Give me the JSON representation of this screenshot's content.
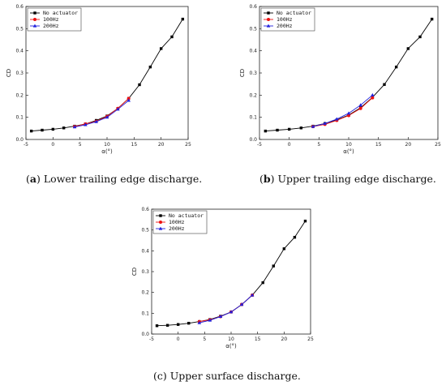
{
  "figure": {
    "captions": [
      {
        "letter": "a",
        "text": " Lower trailing edge discharge."
      },
      {
        "letter": "b",
        "text": " Upper trailing edge discharge."
      },
      {
        "letter": "c",
        "text": " Upper surface discharge."
      }
    ]
  },
  "colors": {
    "no_actuator": "#000000",
    "hz100": "#ee1111",
    "hz200": "#2222dd"
  },
  "chart_data": [
    {
      "type": "line",
      "panel": "a",
      "xlabel": "α(°)",
      "ylabel": "CD",
      "xlim": [
        -5,
        25
      ],
      "ylim": [
        0,
        0.6
      ],
      "xticks": [
        -5,
        0,
        5,
        10,
        15,
        20,
        25
      ],
      "yticks": [
        0.0,
        0.1,
        0.2,
        0.3,
        0.4,
        0.5,
        0.6
      ],
      "legend_position": "top-left",
      "series": [
        {
          "name": "No actuator",
          "marker": "square",
          "x": [
            -4,
            -2,
            0,
            2,
            4,
            6,
            8,
            10,
            12,
            14,
            16,
            18,
            20,
            22,
            24
          ],
          "y": [
            0.038,
            0.042,
            0.046,
            0.052,
            0.06,
            0.07,
            0.086,
            0.106,
            0.14,
            0.185,
            0.247,
            0.327,
            0.41,
            0.463,
            0.543
          ]
        },
        {
          "name": "100Hz",
          "marker": "circle",
          "x": [
            4,
            6,
            8,
            10,
            12,
            14
          ],
          "y": [
            0.058,
            0.07,
            0.082,
            0.104,
            0.14,
            0.185
          ]
        },
        {
          "name": "200Hz",
          "marker": "triangle",
          "x": [
            4,
            6,
            8,
            10,
            12,
            14
          ],
          "y": [
            0.056,
            0.066,
            0.08,
            0.1,
            0.136,
            0.176
          ]
        }
      ]
    },
    {
      "type": "line",
      "panel": "b",
      "xlabel": "α(°)",
      "ylabel": "CD",
      "xlim": [
        -5,
        25
      ],
      "ylim": [
        0,
        0.6
      ],
      "xticks": [
        -5,
        0,
        5,
        10,
        15,
        20,
        25
      ],
      "yticks": [
        0.0,
        0.1,
        0.2,
        0.3,
        0.4,
        0.5,
        0.6
      ],
      "legend_position": "top-left",
      "series": [
        {
          "name": "No actuator",
          "marker": "square",
          "x": [
            -4,
            -2,
            0,
            2,
            4,
            6,
            8,
            10,
            12,
            14,
            16,
            18,
            20,
            22,
            24
          ],
          "y": [
            0.038,
            0.042,
            0.046,
            0.052,
            0.06,
            0.072,
            0.088,
            0.11,
            0.143,
            0.19,
            0.248,
            0.327,
            0.41,
            0.463,
            0.543
          ]
        },
        {
          "name": "100Hz",
          "marker": "circle",
          "x": [
            4,
            6,
            8,
            10,
            12,
            14
          ],
          "y": [
            0.058,
            0.068,
            0.086,
            0.108,
            0.14,
            0.188
          ]
        },
        {
          "name": "200Hz",
          "marker": "triangle",
          "x": [
            4,
            6,
            8,
            10,
            12,
            14
          ],
          "y": [
            0.058,
            0.072,
            0.092,
            0.118,
            0.155,
            0.2
          ]
        }
      ]
    },
    {
      "type": "line",
      "panel": "c",
      "xlabel": "α(°)",
      "ylabel": "CD",
      "xlim": [
        -5,
        25
      ],
      "ylim": [
        0,
        0.6
      ],
      "xticks": [
        -5,
        0,
        5,
        10,
        15,
        20,
        25
      ],
      "yticks": [
        0.0,
        0.1,
        0.2,
        0.3,
        0.4,
        0.5,
        0.6
      ],
      "legend_position": "top-left",
      "series": [
        {
          "name": "No actuator",
          "marker": "square",
          "x": [
            -4,
            -2,
            0,
            2,
            4,
            6,
            8,
            10,
            12,
            14,
            16,
            18,
            20,
            22,
            24
          ],
          "y": [
            0.04,
            0.042,
            0.046,
            0.052,
            0.06,
            0.07,
            0.086,
            0.106,
            0.142,
            0.187,
            0.247,
            0.327,
            0.41,
            0.465,
            0.543
          ]
        },
        {
          "name": "100Hz",
          "marker": "circle",
          "x": [
            4,
            6,
            8,
            10,
            12,
            14
          ],
          "y": [
            0.06,
            0.068,
            0.084,
            0.106,
            0.142,
            0.187
          ]
        },
        {
          "name": "200Hz",
          "marker": "triangle",
          "x": [
            4,
            6,
            8,
            10,
            12,
            14
          ],
          "y": [
            0.054,
            0.066,
            0.084,
            0.106,
            0.142,
            0.187
          ]
        }
      ]
    }
  ]
}
